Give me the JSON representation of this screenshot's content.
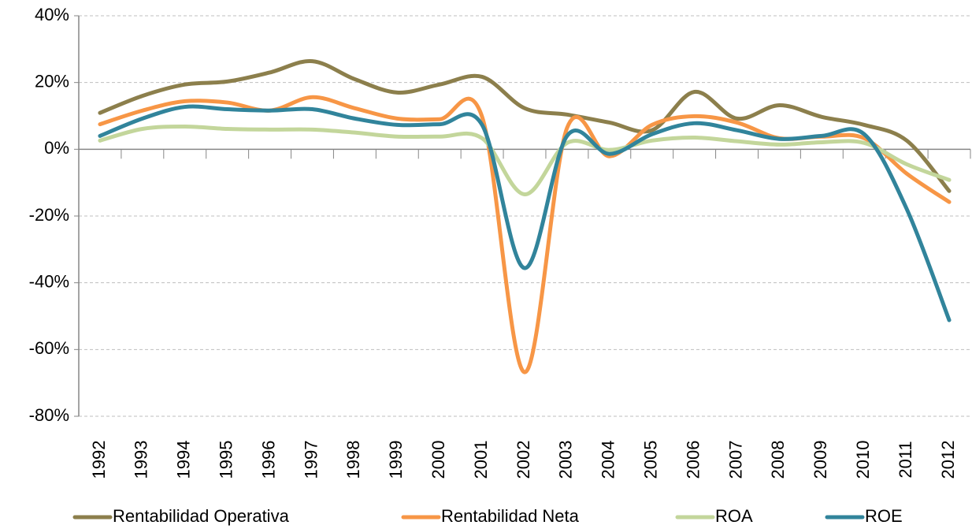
{
  "chart_data": {
    "type": "line",
    "categories": [
      "1992",
      "1993",
      "1994",
      "1995",
      "1996",
      "1997",
      "1998",
      "1999",
      "2000",
      "2001",
      "2002",
      "2003",
      "2004",
      "2005",
      "2006",
      "2007",
      "2008",
      "2009",
      "2010",
      "2011",
      "2012"
    ],
    "series": [
      {
        "name": "Rentabilidad Operativa",
        "color": "#8c7f4c",
        "values": [
          10.9,
          16,
          19.4,
          20.3,
          23,
          26.4,
          21,
          17,
          19.4,
          21.7,
          12.3,
          10.4,
          8,
          5.7,
          17.2,
          9.2,
          13.2,
          9.7,
          7.3,
          2.6,
          -12.5
        ]
      },
      {
        "name": "Rentabilidad Neta",
        "color": "#f79646",
        "values": [
          7.5,
          11.6,
          14.4,
          14,
          11.6,
          15.6,
          12.3,
          9.2,
          9,
          9.7,
          -66.8,
          6.4,
          -2.1,
          7.3,
          9.9,
          8,
          3.3,
          3.8,
          3.3,
          -7.3,
          -15.8
        ]
      },
      {
        "name": "ROA",
        "color": "#c3d69b",
        "values": [
          2.6,
          6.1,
          6.8,
          6.1,
          5.9,
          5.9,
          5,
          3.8,
          3.8,
          3.3,
          -13.5,
          1.9,
          -0.2,
          2.6,
          3.5,
          2.4,
          1.4,
          2.1,
          1.9,
          -4.5,
          -9.2
        ]
      },
      {
        "name": "ROE",
        "color": "#31849b",
        "values": [
          4,
          9.2,
          12.7,
          12,
          11.6,
          12,
          9.2,
          7.3,
          7.5,
          7.3,
          -35.6,
          4,
          -1.4,
          4.5,
          7.8,
          5.7,
          3.1,
          4,
          4.5,
          -17.9,
          -51.2
        ]
      }
    ],
    "ylim": [
      -80,
      40
    ],
    "yticks": [
      {
        "value": -80,
        "label": "-80%"
      },
      {
        "value": -60,
        "label": "-60%"
      },
      {
        "value": -40,
        "label": "-40%"
      },
      {
        "value": -20,
        "label": "-20%"
      },
      {
        "value": 0,
        "label": "0%"
      },
      {
        "value": 20,
        "label": "20%"
      },
      {
        "value": 40,
        "label": "40%"
      }
    ],
    "grid": true,
    "legend": "bottom"
  }
}
